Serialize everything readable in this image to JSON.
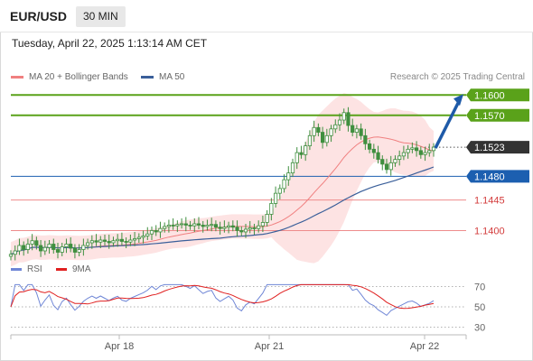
{
  "header": {
    "symbol": "EUR/USD",
    "timeframe": "30 MIN",
    "datetime": "Tuesday, April 22, 2025 1:13:14 AM CET"
  },
  "legend": {
    "bb_label": "MA 20 + Bollinger Bands",
    "ma50_label": "MA 50",
    "copyright": "Research © 2025 Trading Central"
  },
  "rsi_legend": {
    "rsi_label": "RSI",
    "ma_label": "9MA"
  },
  "colors": {
    "green_level": "#5aa21a",
    "blue_level": "#1c5fb0",
    "red_level": "#d33b3b",
    "bb_fill": "#fde0e0",
    "bb_line": "#f08080",
    "ma50": "#3a5f9a",
    "candle": "#3f8f3f",
    "rsi": "#6f86d6",
    "rsi_ma": "#e02020",
    "arrow": "#1e5aa8",
    "price_badge": "#333333"
  },
  "chart_data": [
    {
      "type": "candlestick",
      "title": "EUR/USD 30 MIN",
      "x_tick_labels": [
        "Apr 18",
        "Apr 21",
        "Apr 22"
      ],
      "ylim": [
        1.1366,
        1.1607
      ],
      "levels": [
        {
          "price": 1.16,
          "label": "1.1600",
          "kind": "resistance-target",
          "color": "#5aa21a"
        },
        {
          "price": 1.157,
          "label": "1.1570",
          "kind": "resistance",
          "color": "#5aa21a"
        },
        {
          "price": 1.1523,
          "label": "1.1523",
          "kind": "last-price",
          "color": "#333333"
        },
        {
          "price": 1.148,
          "label": "1.1480",
          "kind": "pivot",
          "color": "#1c5fb0"
        },
        {
          "price": 1.1445,
          "label": "1.1445",
          "kind": "support",
          "color": "#d33b3b"
        },
        {
          "price": 1.14,
          "label": "1.1400",
          "kind": "support",
          "color": "#d33b3b"
        }
      ],
      "close_series": [
        1.1365,
        1.137,
        1.1378,
        1.1372,
        1.138,
        1.1385,
        1.1378,
        1.137,
        1.1375,
        1.138,
        1.1372,
        1.1368,
        1.1376,
        1.138,
        1.1374,
        1.1368,
        1.1372,
        1.1378,
        1.1382,
        1.1385,
        1.1383,
        1.1386,
        1.1384,
        1.1382,
        1.1385,
        1.1387,
        1.1384,
        1.1383,
        1.1386,
        1.1388,
        1.139,
        1.1392,
        1.1395,
        1.14,
        1.1398,
        1.1403,
        1.1406,
        1.1408,
        1.1407,
        1.1409,
        1.141,
        1.1408,
        1.1407,
        1.141,
        1.1408,
        1.1406,
        1.1408,
        1.1409,
        1.1405,
        1.1403,
        1.1405,
        1.1407,
        1.1405,
        1.14,
        1.1398,
        1.1402,
        1.1404,
        1.1403,
        1.1407,
        1.1412,
        1.1424,
        1.144,
        1.1455,
        1.1462,
        1.1475,
        1.1485,
        1.15,
        1.1515,
        1.1512,
        1.1525,
        1.154,
        1.1552,
        1.1545,
        1.153,
        1.154,
        1.155,
        1.1556,
        1.1563,
        1.1574,
        1.1555,
        1.1545,
        1.155,
        1.154,
        1.1528,
        1.152,
        1.1515,
        1.1505,
        1.1498,
        1.149,
        1.15,
        1.1505,
        1.151,
        1.1515,
        1.152,
        1.1522,
        1.1518,
        1.1512,
        1.1515,
        1.1518,
        1.1523
      ],
      "indicators": [
        "MA 20 + Bollinger Bands",
        "MA 50"
      ],
      "forecast_arrow": {
        "from": 1.1523,
        "to": 1.16
      }
    },
    {
      "type": "line",
      "title": "RSI",
      "series": [
        {
          "name": "RSI"
        },
        {
          "name": "9MA"
        }
      ],
      "y_ticks": [
        70,
        50,
        30
      ],
      "ylim": [
        25,
        75
      ]
    }
  ]
}
